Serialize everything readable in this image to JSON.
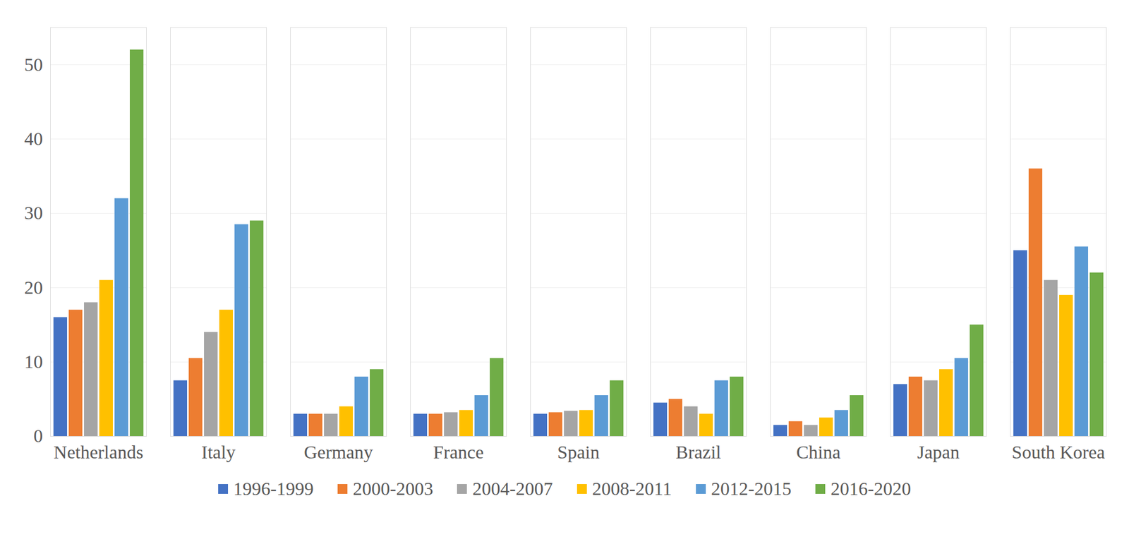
{
  "chart_data": {
    "type": "bar",
    "categories": [
      "Netherlands",
      "Italy",
      "Germany",
      "France",
      "Spain",
      "Brazil",
      "China",
      "Japan",
      "South Korea"
    ],
    "series": [
      {
        "name": "1996-1999",
        "color": "#4472c4",
        "values": [
          16,
          7.5,
          3,
          3,
          3,
          4.5,
          1.5,
          7,
          25
        ]
      },
      {
        "name": "2000-2003",
        "color": "#ed7d31",
        "values": [
          17,
          10.5,
          3,
          3,
          3.2,
          5,
          2,
          8,
          36
        ]
      },
      {
        "name": "2004-2007",
        "color": "#a5a5a5",
        "values": [
          18,
          14,
          3,
          3.2,
          3.4,
          4,
          1.5,
          7.5,
          21
        ]
      },
      {
        "name": "2008-2011",
        "color": "#ffc000",
        "values": [
          21,
          17,
          4,
          3.5,
          3.5,
          3,
          2.5,
          9,
          19
        ]
      },
      {
        "name": "2012-2015",
        "color": "#5b9bd5",
        "values": [
          32,
          28.5,
          8,
          5.5,
          5.5,
          7.5,
          3.5,
          10.5,
          25.5
        ]
      },
      {
        "name": "2016-2020",
        "color": "#70ad47",
        "values": [
          52,
          29,
          9,
          10.5,
          7.5,
          8,
          5.5,
          15,
          22
        ]
      }
    ],
    "ylim": [
      0,
      55
    ],
    "yticks": [
      0,
      10,
      20,
      30,
      40,
      50
    ],
    "grid": true,
    "legend": "bottom"
  }
}
